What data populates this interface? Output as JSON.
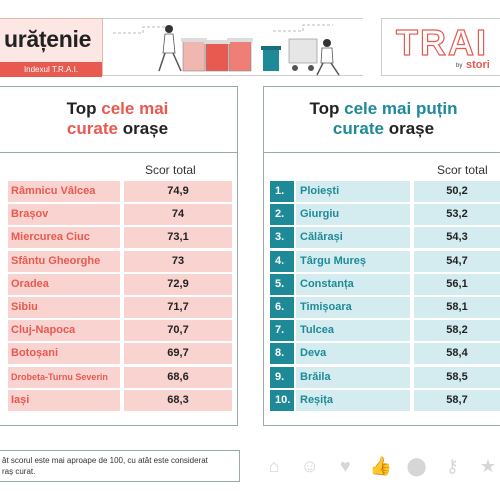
{
  "header": {
    "title": "urățenie",
    "subtitle": "Indexul T.R.A.I.",
    "logo_text": "TRAI",
    "logo_by": "by",
    "logo_brand": "stori"
  },
  "left_panel": {
    "title_plain_1": "Top",
    "title_accent_1": "cele mai",
    "title_accent_2": "curate",
    "title_plain_2": "orașe",
    "column_header": "Scor total",
    "rows": [
      {
        "name": "Râmnicu Vâlcea",
        "score": "74,9"
      },
      {
        "name": "Brașov",
        "score": "74"
      },
      {
        "name": "Miercurea Ciuc",
        "score": "73,1"
      },
      {
        "name": "Sfântu Gheorghe",
        "score": "73"
      },
      {
        "name": "Oradea",
        "score": "72,9"
      },
      {
        "name": "Sibiu",
        "score": "71,7"
      },
      {
        "name": "Cluj-Napoca",
        "score": "70,7"
      },
      {
        "name": "Botoșani",
        "score": "69,7"
      },
      {
        "name": "Drobeta-Turnu Severin",
        "score": "68,6"
      },
      {
        "name": "Iași",
        "score": "68,3"
      }
    ]
  },
  "right_panel": {
    "title_plain_1": "Top",
    "title_accent_1": "cele mai puțin",
    "title_accent_2": "curate",
    "title_plain_2": "orașe",
    "column_header": "Scor total",
    "rows": [
      {
        "rank": "1.",
        "name": "Ploiești",
        "score": "50,2"
      },
      {
        "rank": "2.",
        "name": "Giurgiu",
        "score": "53,2"
      },
      {
        "rank": "3.",
        "name": "Călărași",
        "score": "54,3"
      },
      {
        "rank": "4.",
        "name": "Târgu Mureș",
        "score": "54,7"
      },
      {
        "rank": "5.",
        "name": "Constanța",
        "score": "56,1"
      },
      {
        "rank": "6.",
        "name": "Timișoara",
        "score": "58,1"
      },
      {
        "rank": "7.",
        "name": "Tulcea",
        "score": "58,2"
      },
      {
        "rank": "8.",
        "name": "Deva",
        "score": "58,4"
      },
      {
        "rank": "9.",
        "name": "Brăila",
        "score": "58,5"
      },
      {
        "rank": "10.",
        "name": "Reșița",
        "score": "58,7"
      }
    ]
  },
  "footer": {
    "note_line_1": "ât scorul este mai aproape de 100, cu atât este considerat",
    "note_line_2": "raș curat.",
    "icons": [
      "home-icon",
      "smiley-icon",
      "heart-icon",
      "thumbs-up-icon",
      "location-pin-icon",
      "key-icon",
      "star-icon"
    ]
  },
  "colors": {
    "accent_red": "#e8594f",
    "accent_teal": "#1e8a98",
    "row_red": "#f9d3d0",
    "row_teal": "#d4ecef"
  }
}
